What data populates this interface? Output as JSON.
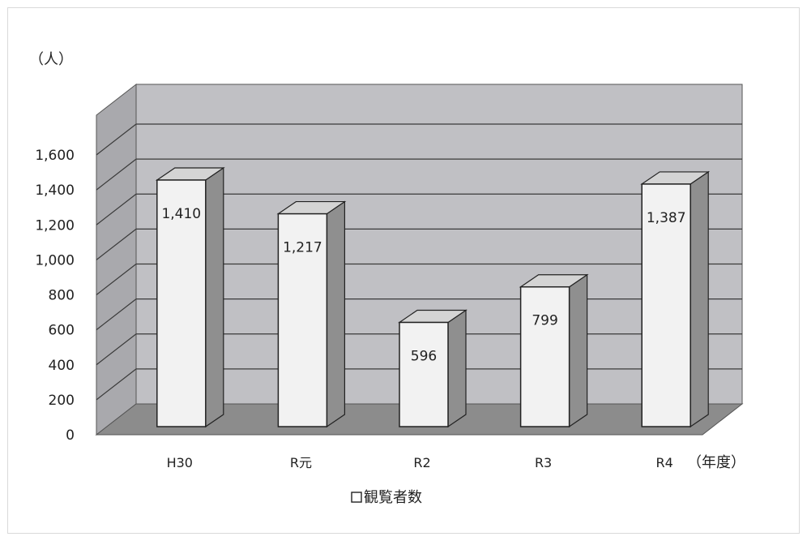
{
  "chart_data": {
    "type": "bar",
    "style": "3d-column",
    "categories": [
      "H30",
      "R元",
      "R2",
      "R3",
      "R4"
    ],
    "series": [
      {
        "name": "観覧者数",
        "values": [
          1410,
          1217,
          596,
          799,
          1387
        ]
      }
    ],
    "data_labels": [
      "1,410",
      "1,217",
      "596",
      "799",
      "1,387"
    ],
    "y_ticks": [
      "0",
      "200",
      "400",
      "600",
      "800",
      "1,000",
      "1,200",
      "1,400",
      "1,600"
    ],
    "ylim": [
      0,
      1600
    ],
    "y_unit_label": "（人）",
    "x_unit_label": "（年度）",
    "grid": true,
    "legend_position": "bottom",
    "colors": {
      "wall": "#c0c0c4",
      "side_wall": "#a9a9ad",
      "floor": "#8c8c8c",
      "bar_front": "#f2f2f2",
      "bar_side": "#8f8f8f",
      "bar_top": "#d4d4d4"
    }
  }
}
